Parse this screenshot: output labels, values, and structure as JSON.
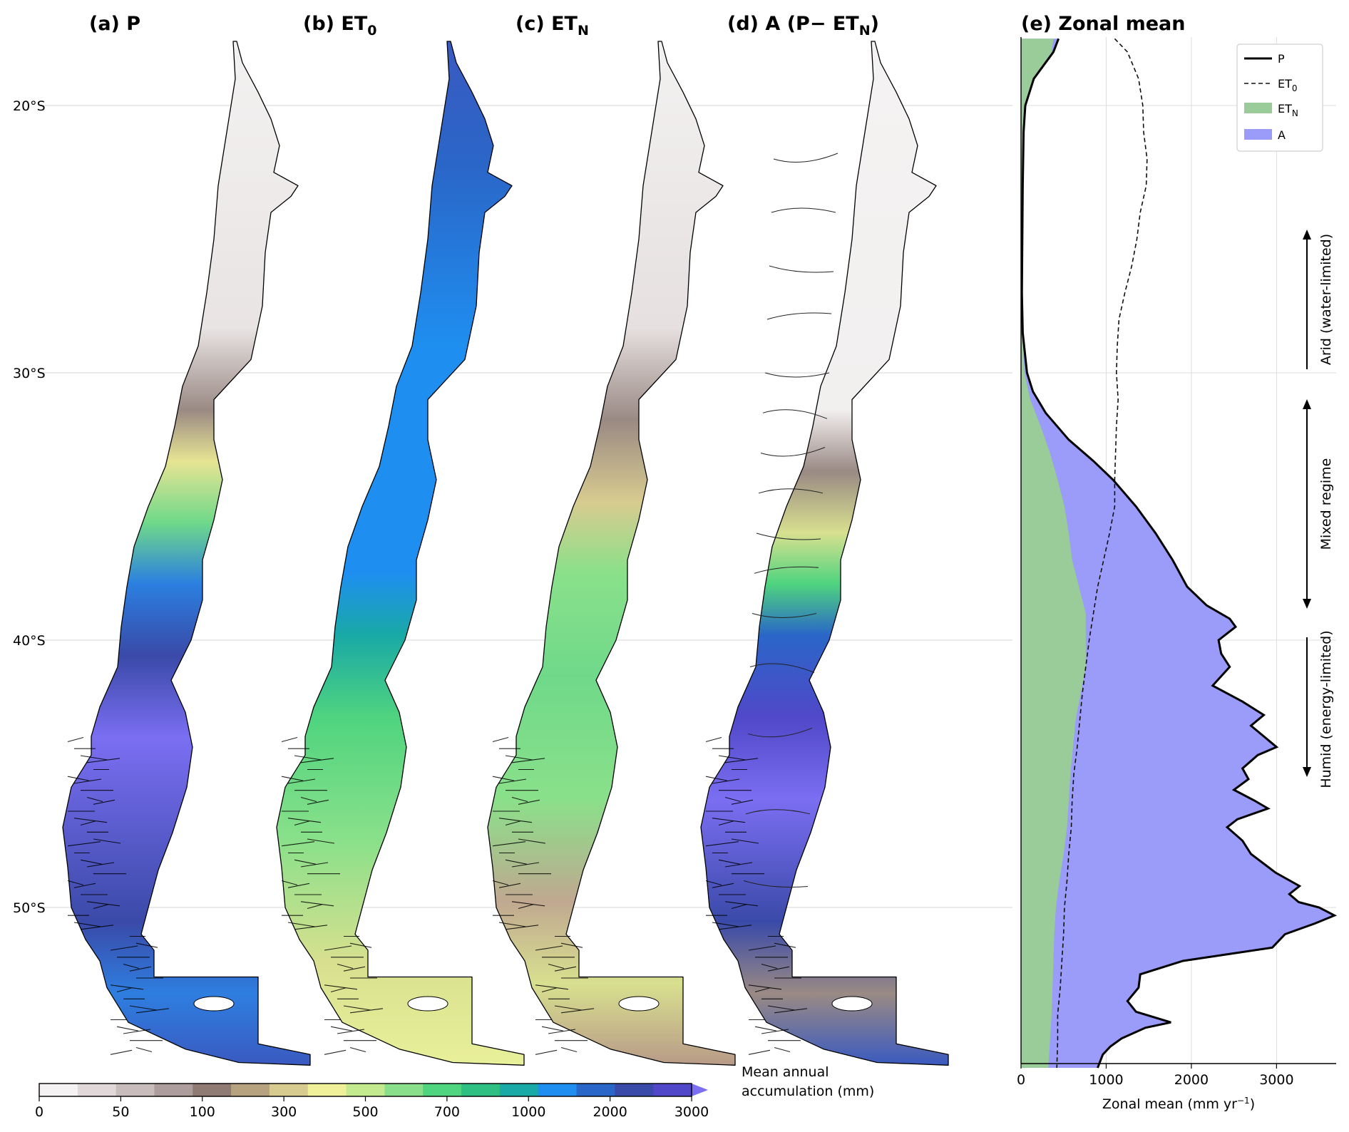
{
  "panels": [
    {
      "id": "a",
      "title_main": "(a) P",
      "title_sub": ""
    },
    {
      "id": "b",
      "title_main": "(b) ET",
      "title_sub": "0"
    },
    {
      "id": "c",
      "title_main": "(c) ET",
      "title_sub": "N"
    },
    {
      "id": "d",
      "title_main": "(d) A (P− ET",
      "title_sub": "N",
      "title_end": ")"
    }
  ],
  "map_lat_labels": [
    "20°S",
    "30°S",
    "40°S",
    "50°S"
  ],
  "colorbar": {
    "title_line1": "Mean annual",
    "title_line2": "accumulation (mm)",
    "tick_labels": [
      "0",
      "50",
      "100",
      "300",
      "500",
      "700",
      "1000",
      "2000",
      "3000"
    ],
    "colors": [
      "#f4f2f2",
      "#e1d9d9",
      "#c9bcbc",
      "#ad9d9d",
      "#8f7b73",
      "#b6a27e",
      "#d8cb8f",
      "#f0f09a",
      "#c3ea8e",
      "#8ae08a",
      "#4fd47f",
      "#2ec082",
      "#19a9a6",
      "#1e8ff0",
      "#2a66c8",
      "#3a4aa8",
      "#5048c8"
    ],
    "extend_color": "#7b6ef2"
  },
  "zonal": {
    "title": "(e) Zonal mean",
    "xlabel": "Zonal mean (mm yr",
    "xlabel_sup": "−1",
    "xlabel_end": ")",
    "xticks": [
      "0",
      "1000",
      "2000",
      "3000"
    ],
    "legend": [
      {
        "label": "P",
        "sub": "",
        "kind": "solid"
      },
      {
        "label": "ET",
        "sub": "0",
        "kind": "dashed"
      },
      {
        "label": "ET",
        "sub": "N",
        "kind": "fill",
        "color": "#99cc99"
      },
      {
        "label": "A",
        "sub": "",
        "kind": "fill",
        "color": "#9b9bfa"
      }
    ],
    "regimes": [
      "Arid (water-limited)",
      "Mixed regime",
      "Humid (energy-limited)"
    ]
  },
  "chart_data": {
    "type": "line",
    "title": "(e) Zonal mean",
    "xlabel": "Zonal mean (mm yr−1)",
    "xlim": [
      0,
      3700
    ],
    "ylim": [
      -56.1,
      -17.5
    ],
    "y_units": "degrees latitude",
    "yticks": [
      "20°S",
      "30°S",
      "40°S",
      "50°S"
    ],
    "grid": true,
    "legend_position": "top-right",
    "series": [
      {
        "name": "P",
        "style": "solid",
        "lat": [
          -17.5,
          -18.0,
          -19.0,
          -20.0,
          -21.0,
          -23.0,
          -25.0,
          -27.0,
          -28.5,
          -30.0,
          -30.7,
          -31.5,
          -32.5,
          -33.3,
          -34.0,
          -35.0,
          -36.0,
          -37.0,
          -38.0,
          -38.7,
          -39.2,
          -39.5,
          -40.0,
          -40.5,
          -41.0,
          -41.7,
          -42.3,
          -42.8,
          -43.2,
          -43.6,
          -44.0,
          -44.3,
          -44.8,
          -45.2,
          -45.6,
          -46.0,
          -46.3,
          -46.7,
          -47.0,
          -47.5,
          -48.0,
          -48.7,
          -49.2,
          -49.5,
          -49.8,
          -50.0,
          -50.3,
          -50.6,
          -51.0,
          -51.5,
          -52.0,
          -52.5,
          -53.0,
          -53.5,
          -53.9,
          -54.3,
          -54.5,
          -54.9,
          -55.2,
          -55.5,
          -56.0
        ],
        "values": [
          440,
          380,
          150,
          50,
          30,
          20,
          15,
          10,
          20,
          70,
          140,
          290,
          560,
          850,
          1080,
          1350,
          1580,
          1780,
          1950,
          2180,
          2450,
          2520,
          2320,
          2350,
          2450,
          2250,
          2600,
          2850,
          2700,
          2850,
          3000,
          2780,
          2600,
          2670,
          2500,
          2740,
          2900,
          2540,
          2420,
          2600,
          2700,
          2990,
          3270,
          3150,
          3260,
          3500,
          3680,
          3450,
          3100,
          2950,
          1900,
          1400,
          1380,
          1250,
          1350,
          1760,
          1460,
          1180,
          1050,
          960,
          900
        ]
      },
      {
        "name": "ET0",
        "style": "dashed",
        "lat": [
          -17.5,
          -18.0,
          -19.0,
          -20.0,
          -21.0,
          -22.0,
          -23.0,
          -24.0,
          -25.0,
          -26.0,
          -27.0,
          -28.0,
          -29.0,
          -30.0,
          -31.0,
          -32.0,
          -33.0,
          -34.0,
          -35.0,
          -36.0,
          -37.0,
          -38.0,
          -39.0,
          -40.0,
          -41.0,
          -42.0,
          -43.0,
          -44.0,
          -45.0,
          -46.0,
          -47.0,
          -48.0,
          -49.0,
          -50.0,
          -51.0,
          -52.0,
          -53.0,
          -54.0,
          -55.0,
          -56.0
        ],
        "values": [
          1100,
          1250,
          1380,
          1430,
          1440,
          1480,
          1470,
          1400,
          1360,
          1300,
          1220,
          1150,
          1130,
          1120,
          1140,
          1120,
          1110,
          1100,
          1100,
          1040,
          970,
          900,
          850,
          800,
          760,
          720,
          690,
          660,
          620,
          600,
          590,
          560,
          540,
          510,
          500,
          480,
          460,
          430,
          430,
          420
        ]
      },
      {
        "name": "ETN",
        "style": "fill",
        "lat": [
          -17.5,
          -18.0,
          -19.0,
          -20.0,
          -22.0,
          -25.0,
          -28.0,
          -30.0,
          -31.0,
          -32.0,
          -33.0,
          -34.0,
          -35.0,
          -36.0,
          -37.0,
          -38.0,
          -39.0,
          -40.0,
          -41.0,
          -42.0,
          -43.0,
          -44.0,
          -45.0,
          -46.0,
          -47.0,
          -48.0,
          -49.0,
          -50.0,
          -51.0,
          -52.0,
          -53.0,
          -54.0,
          -55.0,
          -56.0
        ],
        "values": [
          380,
          360,
          140,
          45,
          25,
          15,
          15,
          40,
          110,
          230,
          340,
          430,
          510,
          560,
          600,
          680,
          760,
          760,
          760,
          700,
          640,
          610,
          580,
          560,
          540,
          500,
          450,
          410,
          390,
          380,
          370,
          360,
          340,
          320
        ]
      },
      {
        "name": "A",
        "style": "fill",
        "derivation": "P − ETN"
      }
    ]
  }
}
